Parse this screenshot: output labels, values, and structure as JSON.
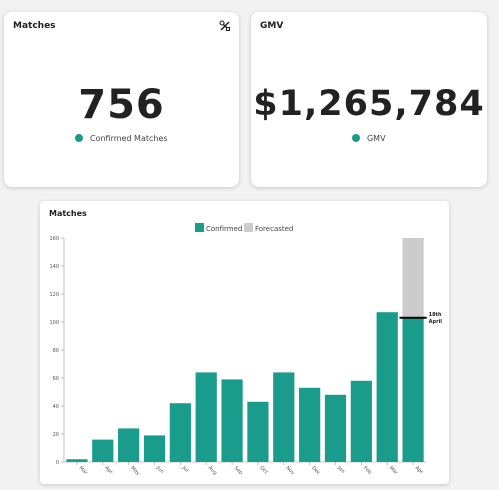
{
  "cards": {
    "matches": {
      "title": "Matches",
      "value": "756",
      "legend": "Confirmed Matches"
    },
    "gmv": {
      "title": "GMV",
      "value": "$1,265,784",
      "legend": "GMV"
    }
  },
  "colors": {
    "confirmed": "#1a9c8c",
    "forecasted": "#cccccc",
    "marker": "#000000"
  },
  "icons": {
    "settings": "tools-icon"
  },
  "chart_data": {
    "type": "bar",
    "title": "Matches",
    "legend": [
      "Confirmed",
      "Forecasted"
    ],
    "legend_position": "top-center",
    "categories": [
      "Mar",
      "Apr",
      "May",
      "Jun",
      "Jul",
      "Aug",
      "Sep",
      "Oct",
      "Nov",
      "Dec",
      "Jan",
      "Feb",
      "Mar",
      "Apr"
    ],
    "series": [
      {
        "name": "Confirmed",
        "values": [
          2,
          16,
          24,
          19,
          42,
          64,
          59,
          43,
          64,
          53,
          48,
          58,
          107,
          103
        ]
      },
      {
        "name": "Forecasted",
        "values": [
          0,
          0,
          0,
          0,
          0,
          0,
          0,
          0,
          0,
          0,
          0,
          0,
          0,
          57
        ]
      }
    ],
    "ylim": [
      0,
      160
    ],
    "yticks": [
      0,
      20,
      40,
      60,
      80,
      100,
      120,
      140,
      160
    ],
    "grid": false,
    "annotation": {
      "category_index": 13,
      "value": 103,
      "line1": "18th",
      "line2": "April"
    }
  }
}
